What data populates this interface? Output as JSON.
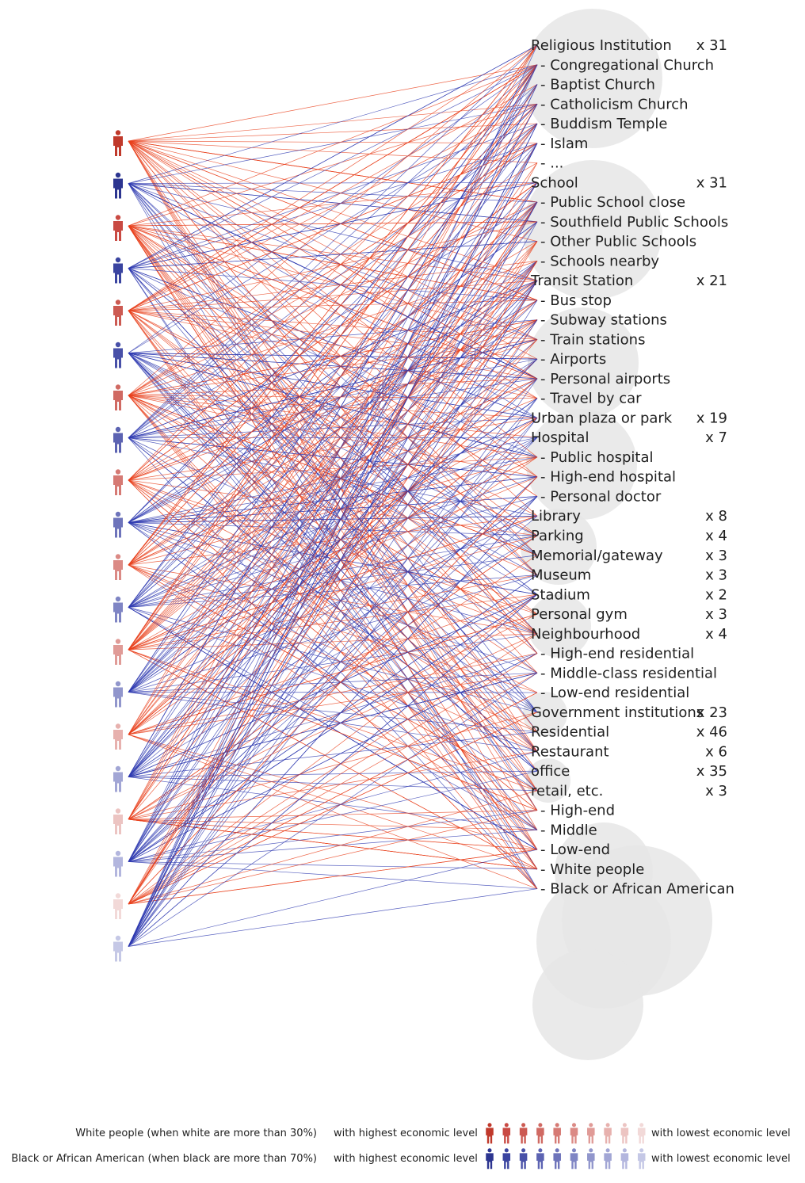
{
  "colors": {
    "white_link": "#e8401c",
    "black_link": "#2e3ab0",
    "bubble": "#e6e6e6"
  },
  "people": [
    {
      "group": "white",
      "color": "#c0392b"
    },
    {
      "group": "black",
      "color": "#2c3590"
    },
    {
      "group": "white",
      "color": "#c94a43"
    },
    {
      "group": "black",
      "color": "#3a44a0"
    },
    {
      "group": "white",
      "color": "#cc5a52"
    },
    {
      "group": "black",
      "color": "#4850a8"
    },
    {
      "group": "white",
      "color": "#d06a63"
    },
    {
      "group": "black",
      "color": "#5c63b2"
    },
    {
      "group": "white",
      "color": "#d67a74"
    },
    {
      "group": "black",
      "color": "#6e74bb"
    },
    {
      "group": "white",
      "color": "#db8a85"
    },
    {
      "group": "black",
      "color": "#7f85c4"
    },
    {
      "group": "white",
      "color": "#e09b97"
    },
    {
      "group": "black",
      "color": "#9196cc"
    },
    {
      "group": "white",
      "color": "#e7b1ae"
    },
    {
      "group": "black",
      "color": "#a2a6d5"
    },
    {
      "group": "white",
      "color": "#ecc4c2"
    },
    {
      "group": "black",
      "color": "#b3b6de"
    },
    {
      "group": "white",
      "color": "#f2d9d8"
    },
    {
      "group": "black",
      "color": "#c5c8e6"
    }
  ],
  "categories": [
    {
      "kind": "heading",
      "text": "Religious Institution",
      "count": "x 31"
    },
    {
      "kind": "sub",
      "text": "- Congregational Church"
    },
    {
      "kind": "sub",
      "text": "- Baptist Church"
    },
    {
      "kind": "sub",
      "text": "- Catholicism Church"
    },
    {
      "kind": "sub",
      "text": "- Buddism Temple"
    },
    {
      "kind": "sub",
      "text": "- Islam"
    },
    {
      "kind": "sub",
      "text": "- ..."
    },
    {
      "kind": "heading",
      "text": "School",
      "count": "x 31"
    },
    {
      "kind": "sub",
      "text": "- Public School close"
    },
    {
      "kind": "sub",
      "text": "- Southfield Public Schools"
    },
    {
      "kind": "sub",
      "text": "- Other Public Schools"
    },
    {
      "kind": "sub",
      "text": "- Schools nearby"
    },
    {
      "kind": "heading",
      "text": "Transit Station",
      "count": "x 21"
    },
    {
      "kind": "sub",
      "text": "- Bus stop"
    },
    {
      "kind": "sub",
      "text": "- Subway stations"
    },
    {
      "kind": "sub",
      "text": "- Train stations"
    },
    {
      "kind": "sub",
      "text": "- Airports"
    },
    {
      "kind": "sub",
      "text": "- Personal airports"
    },
    {
      "kind": "sub",
      "text": "- Travel by car"
    },
    {
      "kind": "heading",
      "text": "Urban plaza or park",
      "count": "x 19"
    },
    {
      "kind": "heading",
      "text": "Hospital",
      "count": "x 7"
    },
    {
      "kind": "sub",
      "text": "- Public hospital"
    },
    {
      "kind": "sub",
      "text": "- High-end hospital"
    },
    {
      "kind": "sub",
      "text": "- Personal doctor"
    },
    {
      "kind": "heading",
      "text": "Library",
      "count": "x 8"
    },
    {
      "kind": "heading",
      "text": "Parking",
      "count": "x 4"
    },
    {
      "kind": "heading",
      "text": "Memorial/gateway",
      "count": "x 3"
    },
    {
      "kind": "heading",
      "text": "Museum",
      "count": "x 3"
    },
    {
      "kind": "heading",
      "text": "Stadium",
      "count": "x 2"
    },
    {
      "kind": "heading",
      "text": "Personal gym",
      "count": "x 3"
    },
    {
      "kind": "heading",
      "text": "Neighbourhood",
      "count": "x 4"
    },
    {
      "kind": "sub",
      "text": "- High-end residential"
    },
    {
      "kind": "sub",
      "text": "- Middle-class residential"
    },
    {
      "kind": "sub",
      "text": "- Low-end residential"
    },
    {
      "kind": "heading",
      "text": "Government institutions",
      "count": "x 23"
    },
    {
      "kind": "heading",
      "text": "Residential",
      "count": "x 46"
    },
    {
      "kind": "heading",
      "text": "Restaurant",
      "count": "x 6"
    },
    {
      "kind": "heading",
      "text": "office",
      "count": "x 35"
    },
    {
      "kind": "heading",
      "text": "retail, etc.",
      "count": "x 3"
    },
    {
      "kind": "sub",
      "text": "- High-end"
    },
    {
      "kind": "sub",
      "text": "- Middle"
    },
    {
      "kind": "sub",
      "text": "- Low-end"
    },
    {
      "kind": "sub",
      "text": "- White people"
    },
    {
      "kind": "sub",
      "text": "- Black or African American"
    }
  ],
  "legend": {
    "white_label": "White people (when white are more than 30%)",
    "black_label": "Black or African American (when black are more than 70%)",
    "highest": "with highest economic level",
    "lowest": "with lowest economic level",
    "white_scale": [
      "#c0392b",
      "#c94a43",
      "#cc5a52",
      "#d06a63",
      "#d67a74",
      "#db8a85",
      "#e09b97",
      "#e7b1ae",
      "#ecc4c2",
      "#f2d9d8"
    ],
    "black_scale": [
      "#2c3590",
      "#3a44a0",
      "#4850a8",
      "#5c63b2",
      "#6e74bb",
      "#7f85c4",
      "#9196cc",
      "#a2a6d5",
      "#b3b6de",
      "#c5c8e6"
    ]
  }
}
